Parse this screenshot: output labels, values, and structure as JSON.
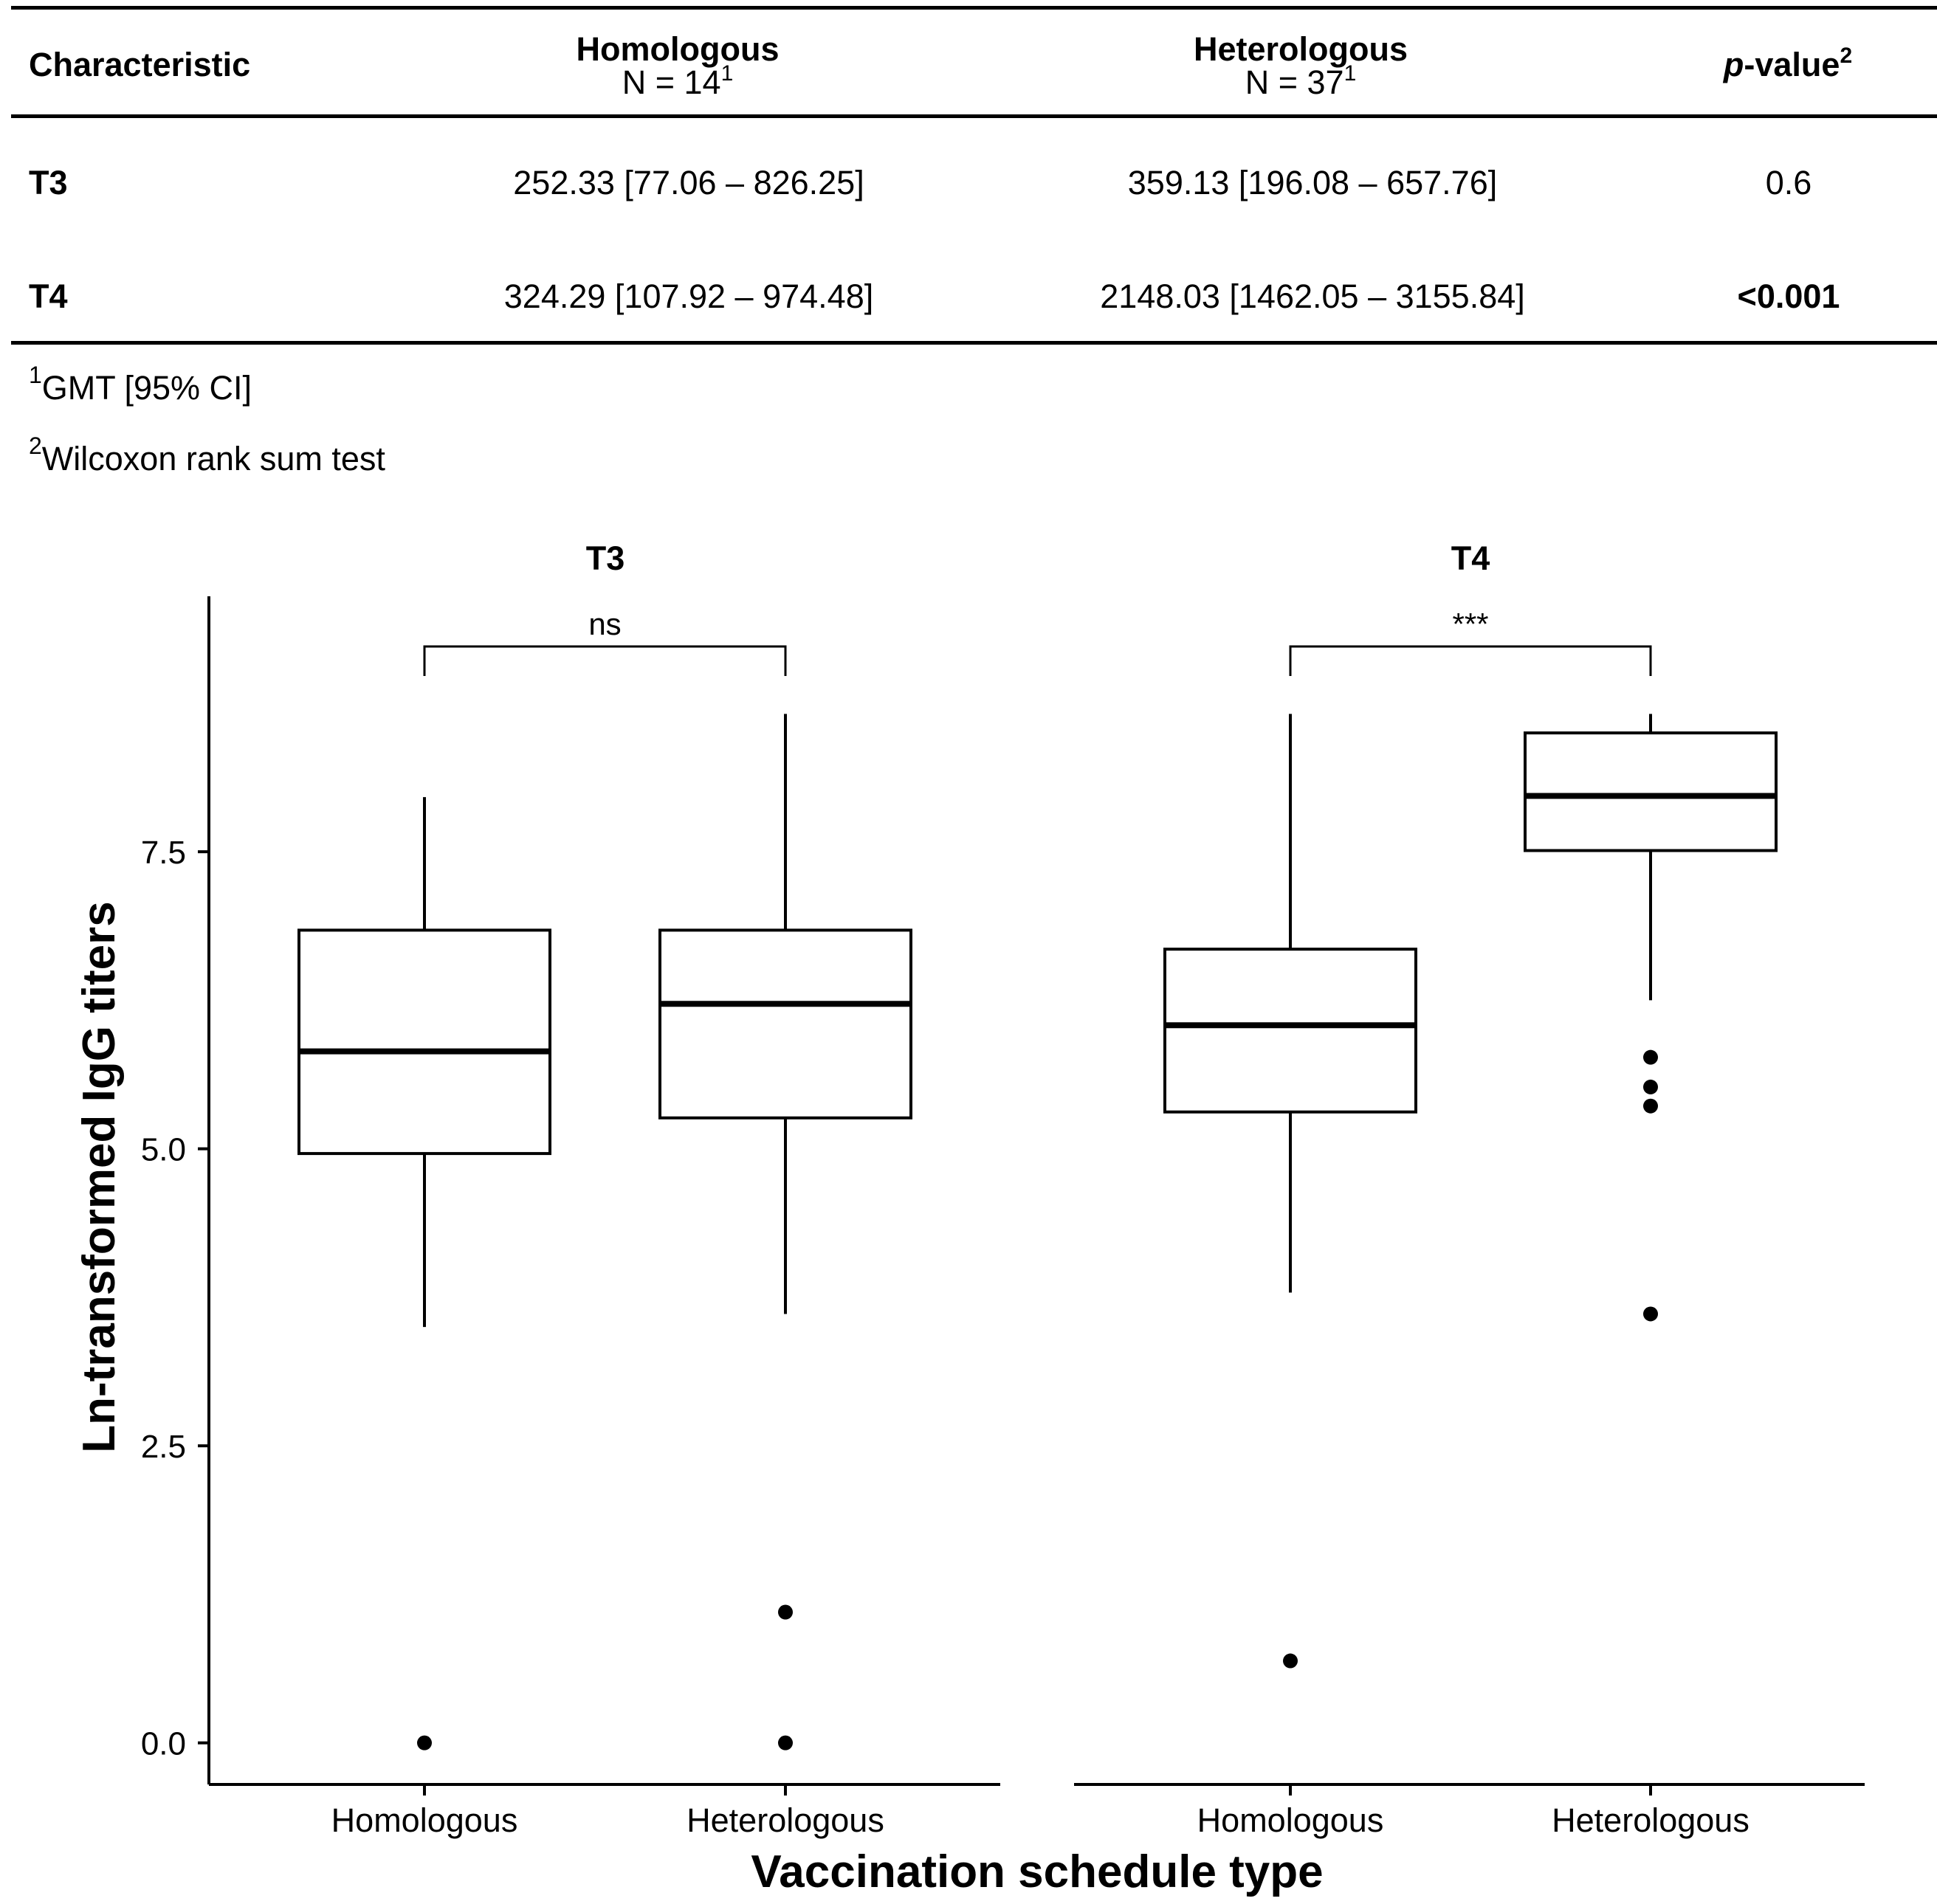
{
  "table": {
    "headers": {
      "characteristic": "Characteristic",
      "homologous": "Homologous",
      "homologous_n": "N = 14",
      "heterologous": "Heterologous",
      "heterologous_n": "N = 37",
      "p_italic": "p",
      "p_rest": "-value",
      "footnote_mark_1": "1",
      "footnote_mark_2": "2"
    },
    "rows": [
      {
        "label": "T3",
        "homologous": "252.33 [77.06 – 826.25]",
        "heterologous": "359.13 [196.08 – 657.76]",
        "p": "0.6"
      },
      {
        "label": "T4",
        "homologous": "324.29 [107.92 – 974.48]",
        "heterologous": "2148.03 [1462.05 – 3155.84]",
        "p": "<0.001"
      }
    ],
    "footnotes": [
      {
        "mark": "1",
        "text": "GMT [95% CI]"
      },
      {
        "mark": "2",
        "text": "Wilcoxon rank sum test"
      }
    ]
  },
  "chart_data": {
    "type": "box",
    "xlabel": "Vaccination schedule type",
    "ylabel": "Ln-transformed IgG titers",
    "ylim": [
      -0.35,
      9.65
    ],
    "yticks": [
      0.0,
      2.5,
      5.0,
      7.5
    ],
    "ytick_labels": [
      "0.0",
      "2.5",
      "5.0",
      "7.5"
    ],
    "categories": [
      "Homologous",
      "Heterologous"
    ],
    "panels": [
      {
        "title": "T3",
        "significance": "ns",
        "boxes": [
          {
            "group": "Homologous",
            "whisker_low": 3.5,
            "q1": 4.96,
            "median": 5.82,
            "q3": 6.84,
            "whisker_high": 7.96,
            "outliers": [
              0.0
            ]
          },
          {
            "group": "Heterologous",
            "whisker_low": 3.61,
            "q1": 5.26,
            "median": 6.22,
            "q3": 6.84,
            "whisker_high": 8.66,
            "outliers": [
              1.1,
              0.0
            ]
          }
        ]
      },
      {
        "title": "T4",
        "significance": "***",
        "boxes": [
          {
            "group": "Homologous",
            "whisker_low": 3.79,
            "q1": 5.31,
            "median": 6.04,
            "q3": 6.68,
            "whisker_high": 8.66,
            "outliers": [
              0.69
            ]
          },
          {
            "group": "Heterologous",
            "whisker_low": 6.25,
            "q1": 7.51,
            "median": 7.97,
            "q3": 8.5,
            "whisker_high": 8.66,
            "outliers": [
              5.77,
              5.52,
              5.36,
              3.61
            ]
          }
        ]
      }
    ]
  }
}
